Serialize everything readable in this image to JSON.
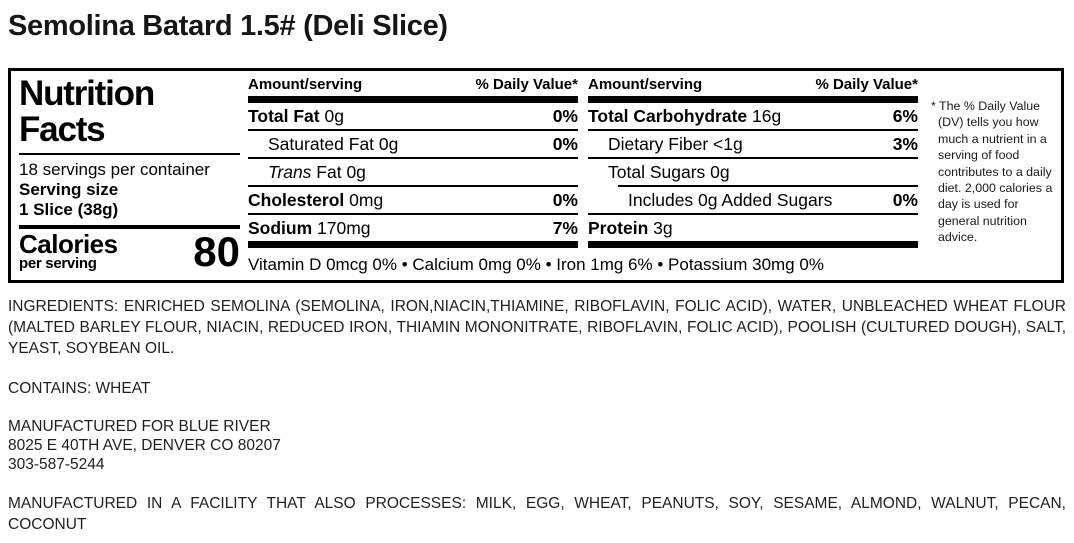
{
  "page_title": "Semolina Batard 1.5# (Deli Slice)",
  "colors": {
    "text": "#000000",
    "body_text": "#1f1f1f",
    "background": "#ffffff",
    "border": "#000000"
  },
  "nutrition": {
    "title_line1": "Nutrition",
    "title_line2": "Facts",
    "servings_per_container": "18 servings per container",
    "serving_size_label": "Serving size",
    "serving_size_value": "1 Slice (38g)",
    "calories_label": "Calories",
    "calories_sublabel": "per serving",
    "calories_value": "80",
    "header": {
      "amount": "Amount/serving",
      "dv": "% Daily Value*"
    },
    "columns": [
      {
        "rows": [
          {
            "bold": "Total Fat",
            "rest": " 0g",
            "dv": "0%"
          },
          {
            "rest": "Saturated Fat 0g",
            "dv": "0%"
          },
          {
            "italic": "Trans",
            "rest": " Fat 0g",
            "dv": ""
          },
          {
            "bold": "Cholesterol",
            "rest": " 0mg",
            "dv": "0%"
          },
          {
            "bold": "Sodium",
            "rest": " 170mg",
            "dv": "7%"
          }
        ]
      },
      {
        "rows": [
          {
            "bold": "Total Carbohydrate",
            "rest": " 16g",
            "dv": "6%"
          },
          {
            "rest": "Dietary Fiber <1g",
            "dv": "3%"
          },
          {
            "rest": "Total Sugars 0g",
            "dv": ""
          },
          {
            "rest": "Includes 0g Added Sugars",
            "dv": "0%"
          },
          {
            "bold": "Protein",
            "rest": " 3g",
            "dv": ""
          }
        ]
      }
    ],
    "micronutrients": "Vitamin D 0mcg 0% • Calcium 0mg 0% • Iron 1mg 6% • Potassium 30mg 0%",
    "footnote": "* The % Daily Value (DV) tells you how much a nutrient in a serving of food contributes to a daily diet. 2,000 calories a day is used for general nutrition advice."
  },
  "sections": {
    "ingredients": "INGREDIENTS: ENRICHED SEMOLINA (SEMOLINA, IRON,NIACIN,THIAMINE, RIBOFLAVIN, FOLIC ACID), WATER, UNBLEACHED WHEAT FLOUR (MALTED BARLEY FLOUR, NIACIN, REDUCED IRON, THIAMIN MONONITRATE, RIBOFLAVIN, FOLIC ACID), POOLISH (CULTURED DOUGH), SALT, YEAST, SOYBEAN OIL.",
    "contains": "CONTAINS: WHEAT",
    "manufactured_for_line1": "MANUFACTURED FOR BLUE RIVER",
    "manufactured_for_line2": "8025 E 40TH AVE, DENVER CO 80207",
    "manufactured_for_line3": "303-587-5244",
    "facility": "MANUFACTURED IN A FACILITY THAT ALSO PROCESSES: MILK, EGG, WHEAT, PEANUTS, SOY, SESAME, ALMOND, WALNUT, PECAN, COCONUT"
  }
}
